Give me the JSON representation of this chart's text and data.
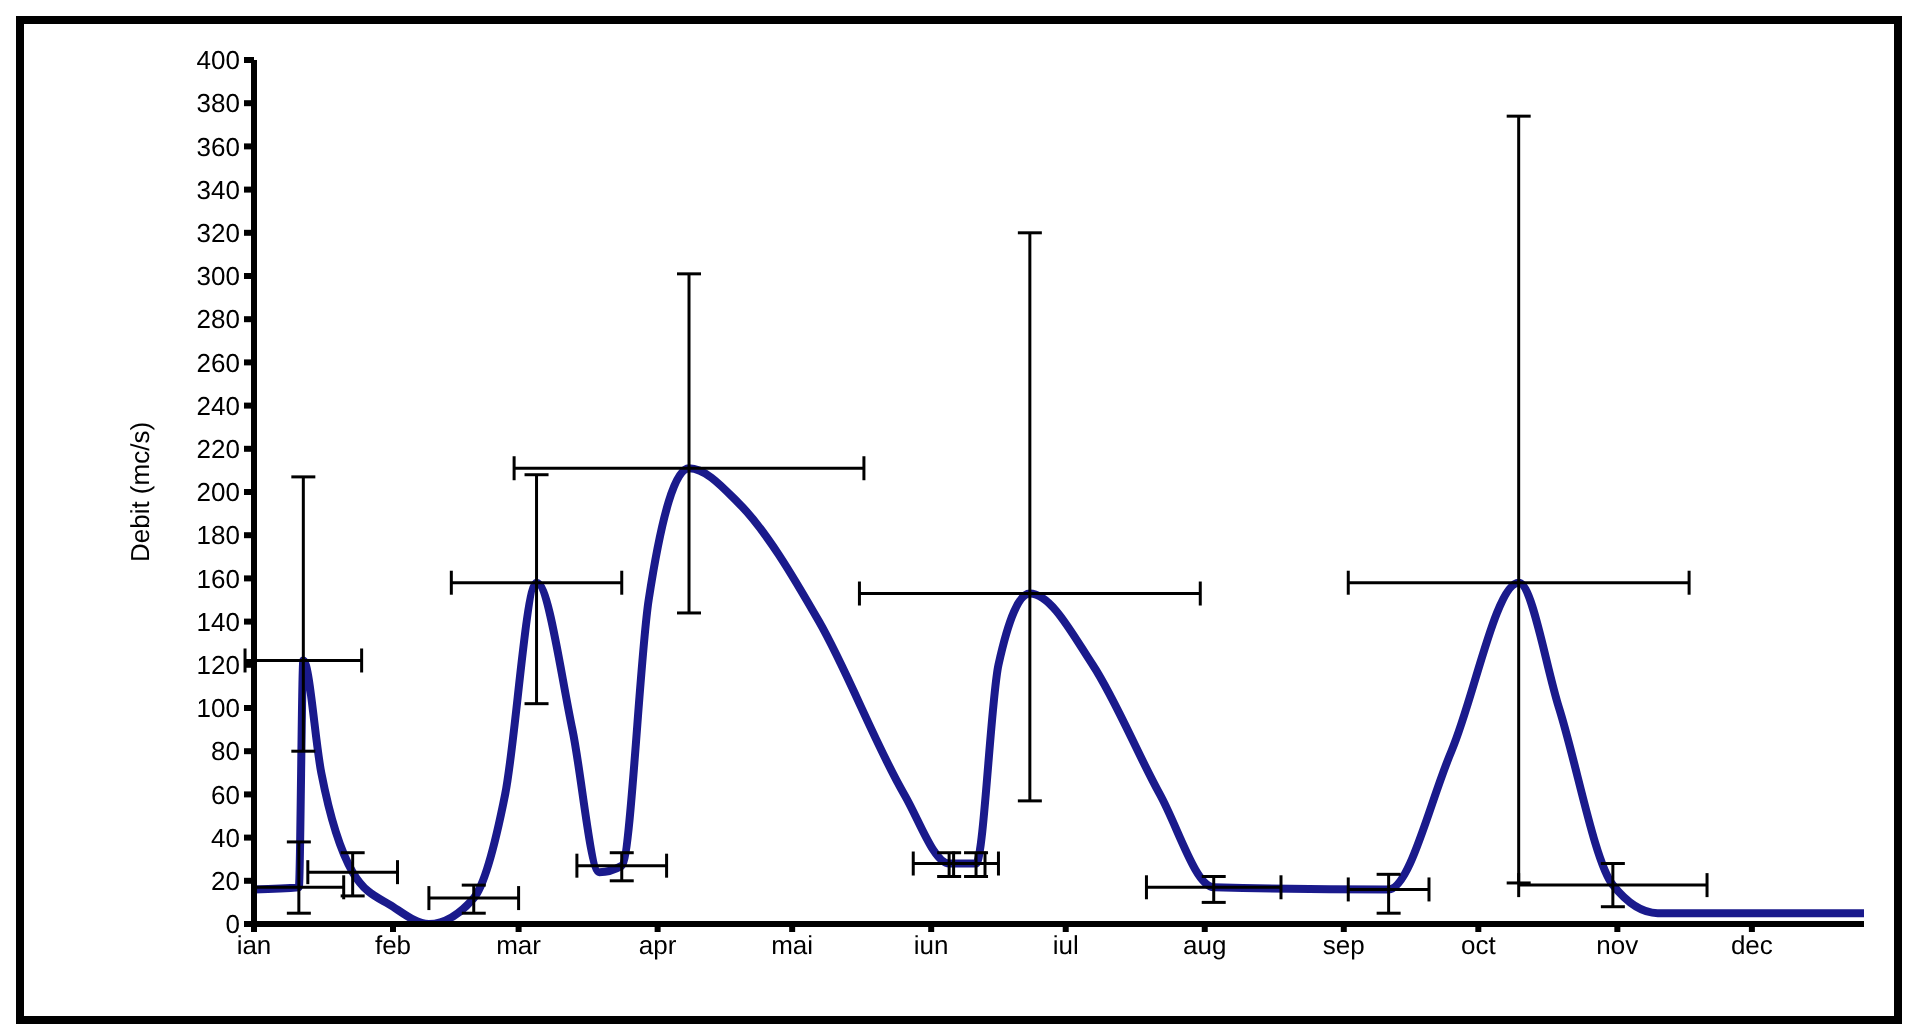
{
  "chart_data": {
    "type": "line",
    "ylabel": "Debit (mc/s)",
    "x": [
      "--01-01",
      "--01-11",
      "--01-12",
      "--01-16",
      "--01-23",
      "--02-01",
      "--02-09",
      "--02-19",
      "--02-26",
      "--03-05",
      "--03-13",
      "--03-19",
      "--03-24",
      "--03-30",
      "--04-08",
      "--04-19",
      "--05-07",
      "--05-26",
      "--06-05",
      "--06-11",
      "--06-16",
      "--06-23",
      "--07-07",
      "--07-22",
      "--08-03",
      "--09-11",
      "--09-25",
      "--10-10",
      "--10-19",
      "--10-31",
      "--11-10",
      "--12-01",
      "--12-26"
    ],
    "xlim": [
      "--01-01",
      "--12-26"
    ],
    "xticks": [
      {
        "value": "--01-01",
        "label": "ian"
      },
      {
        "value": "--02-01",
        "label": "feb"
      },
      {
        "value": "--03-01",
        "label": "mar"
      },
      {
        "value": "--04-01",
        "label": "apr"
      },
      {
        "value": "--05-01",
        "label": "mai"
      },
      {
        "value": "--06-01",
        "label": "iun"
      },
      {
        "value": "--07-01",
        "label": "iul"
      },
      {
        "value": "--08-01",
        "label": "aug"
      },
      {
        "value": "--09-01",
        "label": "sep"
      },
      {
        "value": "--10-01",
        "label": "oct"
      },
      {
        "value": "--11-01",
        "label": "nov"
      },
      {
        "value": "--12-01",
        "label": "dec"
      }
    ],
    "ylim": [
      0,
      400
    ],
    "yticks": [
      0,
      20,
      40,
      60,
      80,
      100,
      120,
      140,
      160,
      180,
      200,
      220,
      240,
      260,
      280,
      300,
      320,
      340,
      360,
      380,
      400
    ],
    "grid": false,
    "legend": false,
    "marker": "none",
    "line_style": "solid",
    "series": [
      {
        "color": "#1a1a8c",
        "values": [
          16,
          17,
          122,
          70,
          24,
          8,
          0,
          12,
          60,
          158,
          90,
          24,
          27,
          150,
          211,
          195,
          140,
          60,
          28,
          28,
          120,
          153,
          120,
          60,
          17,
          16,
          80,
          158,
          100,
          18,
          5,
          5,
          5
        ],
        "errors": [
          null,
          [
            5,
            38
          ],
          [
            80,
            207
          ],
          null,
          [
            13,
            33
          ],
          null,
          null,
          [
            5,
            18
          ],
          null,
          [
            102,
            208
          ],
          null,
          null,
          [
            20,
            33
          ],
          null,
          [
            144,
            301
          ],
          null,
          null,
          null,
          [
            22,
            33
          ],
          [
            22,
            33
          ],
          null,
          [
            57,
            320
          ],
          null,
          null,
          [
            10,
            22
          ],
          [
            5,
            23
          ],
          null,
          [
            19,
            374
          ],
          null,
          [
            8,
            28
          ],
          null,
          null,
          null
        ],
        "xerrors": [
          null,
          10,
          13,
          null,
          10,
          null,
          null,
          10,
          null,
          19,
          null,
          null,
          10,
          null,
          39,
          null,
          null,
          null,
          8,
          5,
          null,
          38,
          null,
          null,
          15,
          9,
          null,
          38,
          null,
          21,
          null,
          null,
          null
        ]
      }
    ]
  }
}
